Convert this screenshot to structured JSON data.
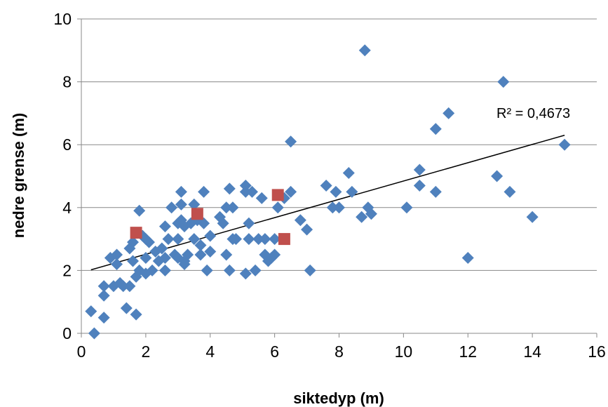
{
  "chart_data": {
    "type": "scatter",
    "xlabel": "siktedyp (m)",
    "ylabel": "nedre grense (m)",
    "xlim": [
      0,
      16
    ],
    "ylim": [
      0,
      10
    ],
    "x_ticks": [
      0,
      2,
      4,
      6,
      8,
      10,
      12,
      14,
      16
    ],
    "y_ticks": [
      0,
      2,
      4,
      6,
      8,
      10
    ],
    "grid": "horizontal",
    "colors": {
      "series_blue": "#4f81bd",
      "series_red": "#c0504d",
      "trendline": "#000000",
      "gridline": "#888888"
    },
    "series": [
      {
        "marker": "diamond",
        "color": "#4f81bd",
        "points": [
          [
            0.3,
            0.7
          ],
          [
            0.4,
            0.0
          ],
          [
            0.7,
            1.5
          ],
          [
            0.7,
            1.2
          ],
          [
            0.7,
            0.5
          ],
          [
            0.9,
            2.4
          ],
          [
            1.0,
            1.5
          ],
          [
            1.1,
            2.5
          ],
          [
            1.1,
            2.2
          ],
          [
            1.2,
            1.6
          ],
          [
            1.3,
            1.5
          ],
          [
            1.4,
            0.8
          ],
          [
            1.5,
            1.5
          ],
          [
            1.5,
            2.7
          ],
          [
            1.6,
            2.9
          ],
          [
            1.6,
            2.3
          ],
          [
            1.7,
            1.8
          ],
          [
            1.7,
            0.6
          ],
          [
            1.8,
            3.9
          ],
          [
            1.8,
            2.0
          ],
          [
            1.9,
            3.1
          ],
          [
            2.0,
            3.0
          ],
          [
            2.0,
            2.4
          ],
          [
            2.0,
            1.9
          ],
          [
            2.1,
            2.9
          ],
          [
            2.2,
            2.0
          ],
          [
            2.3,
            2.6
          ],
          [
            2.4,
            2.3
          ],
          [
            2.5,
            2.7
          ],
          [
            2.6,
            3.4
          ],
          [
            2.6,
            2.4
          ],
          [
            2.6,
            2.0
          ],
          [
            2.7,
            3.0
          ],
          [
            2.8,
            4.0
          ],
          [
            2.9,
            2.5
          ],
          [
            3.0,
            3.5
          ],
          [
            3.0,
            3.0
          ],
          [
            3.0,
            2.4
          ],
          [
            3.1,
            4.5
          ],
          [
            3.1,
            4.1
          ],
          [
            3.1,
            3.6
          ],
          [
            3.2,
            3.4
          ],
          [
            3.2,
            2.3
          ],
          [
            3.2,
            2.2
          ],
          [
            3.3,
            2.5
          ],
          [
            3.4,
            3.5
          ],
          [
            3.5,
            4.1
          ],
          [
            3.5,
            3.0
          ],
          [
            3.6,
            3.6
          ],
          [
            3.7,
            2.8
          ],
          [
            3.7,
            2.5
          ],
          [
            3.8,
            4.5
          ],
          [
            3.8,
            3.5
          ],
          [
            3.9,
            2.0
          ],
          [
            4.0,
            3.1
          ],
          [
            4.0,
            2.6
          ],
          [
            4.3,
            3.7
          ],
          [
            4.4,
            3.5
          ],
          [
            4.5,
            4.0
          ],
          [
            4.5,
            2.5
          ],
          [
            4.6,
            4.6
          ],
          [
            4.6,
            2.0
          ],
          [
            4.7,
            4.0
          ],
          [
            4.7,
            3.0
          ],
          [
            4.8,
            3.0
          ],
          [
            5.1,
            4.7
          ],
          [
            5.1,
            4.5
          ],
          [
            5.1,
            1.9
          ],
          [
            5.2,
            3.5
          ],
          [
            5.2,
            3.0
          ],
          [
            5.3,
            4.5
          ],
          [
            5.4,
            2.0
          ],
          [
            5.5,
            3.0
          ],
          [
            5.6,
            4.3
          ],
          [
            5.7,
            3.0
          ],
          [
            5.7,
            2.5
          ],
          [
            5.8,
            2.3
          ],
          [
            5.9,
            2.4
          ],
          [
            6.0,
            3.0
          ],
          [
            6.0,
            2.5
          ],
          [
            6.1,
            4.0
          ],
          [
            6.3,
            4.3
          ],
          [
            6.5,
            6.1
          ],
          [
            6.5,
            4.5
          ],
          [
            6.8,
            3.6
          ],
          [
            7.0,
            3.3
          ],
          [
            7.1,
            2.0
          ],
          [
            7.6,
            4.7
          ],
          [
            7.8,
            4.0
          ],
          [
            7.9,
            4.5
          ],
          [
            8.0,
            4.0
          ],
          [
            8.3,
            5.1
          ],
          [
            8.4,
            4.5
          ],
          [
            8.7,
            3.7
          ],
          [
            8.8,
            9.0
          ],
          [
            8.9,
            4.0
          ],
          [
            9.0,
            3.8
          ],
          [
            10.1,
            4.0
          ],
          [
            10.5,
            5.2
          ],
          [
            10.5,
            4.7
          ],
          [
            11.0,
            6.5
          ],
          [
            11.0,
            4.5
          ],
          [
            11.4,
            7.0
          ],
          [
            12.0,
            2.4
          ],
          [
            12.9,
            5.0
          ],
          [
            13.1,
            8.0
          ],
          [
            13.3,
            4.5
          ],
          [
            14.0,
            3.7
          ],
          [
            15.0,
            6.0
          ]
        ]
      },
      {
        "marker": "square",
        "color": "#c0504d",
        "points": [
          [
            1.7,
            3.2
          ],
          [
            3.6,
            3.8
          ],
          [
            6.1,
            4.4
          ],
          [
            6.3,
            3.0
          ]
        ]
      }
    ],
    "trendline": {
      "type": "linear",
      "x_range": [
        0.3,
        15.0
      ],
      "y_start": 2.02,
      "y_end": 6.3
    },
    "annotations": {
      "r_squared": "R² = 0,4673"
    }
  }
}
